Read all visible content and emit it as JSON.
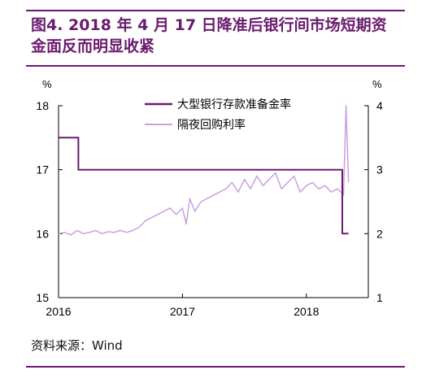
{
  "title": "图4. 2018 年 4 月 17 日降准后银行间市场短期资金面反而明显收紧",
  "source": "资料来源：Wind",
  "colors": {
    "title": "#6a1b6e",
    "series1": "#6a1b6e",
    "series2": "#c9a0e0"
  },
  "chart_data": {
    "type": "line",
    "title": "",
    "left_axis": {
      "unit": "%",
      "ylim": [
        15,
        18
      ],
      "ticks": [
        "15",
        "16",
        "17",
        "18"
      ]
    },
    "right_axis": {
      "unit": "%",
      "ylim": [
        1,
        4
      ],
      "ticks": [
        "1",
        "2",
        "3",
        "4"
      ]
    },
    "x_ticks": [
      "2016",
      "2017",
      "2018"
    ],
    "xlim": [
      2016.0,
      2018.5
    ],
    "legend_position": "top-center",
    "series": [
      {
        "name": "大型银行存款准备金率",
        "axis": "left",
        "x": [
          2016.0,
          2016.16,
          2016.16,
          2018.29,
          2018.29,
          2018.34
        ],
        "y": [
          17.5,
          17.5,
          17.0,
          17.0,
          16.0,
          16.0
        ]
      },
      {
        "name": "隔夜回购利率",
        "axis": "right",
        "x": [
          2016.0,
          2016.05,
          2016.1,
          2016.15,
          2016.2,
          2016.25,
          2016.3,
          2016.35,
          2016.4,
          2016.45,
          2016.5,
          2016.55,
          2016.6,
          2016.65,
          2016.7,
          2016.75,
          2016.8,
          2016.85,
          2016.9,
          2016.95,
          2017.0,
          2017.03,
          2017.06,
          2017.1,
          2017.15,
          2017.2,
          2017.25,
          2017.3,
          2017.35,
          2017.4,
          2017.45,
          2017.5,
          2017.55,
          2017.6,
          2017.65,
          2017.7,
          2017.75,
          2017.8,
          2017.85,
          2017.9,
          2017.95,
          2018.0,
          2018.05,
          2018.1,
          2018.15,
          2018.2,
          2018.25,
          2018.28,
          2018.3,
          2018.32,
          2018.34
        ],
        "y": [
          2.0,
          2.02,
          1.98,
          2.05,
          2.0,
          2.02,
          2.05,
          2.0,
          2.03,
          2.02,
          2.05,
          2.02,
          2.05,
          2.1,
          2.2,
          2.25,
          2.3,
          2.35,
          2.4,
          2.3,
          2.4,
          2.15,
          2.55,
          2.35,
          2.5,
          2.55,
          2.6,
          2.65,
          2.7,
          2.8,
          2.65,
          2.85,
          2.7,
          2.9,
          2.75,
          2.85,
          2.95,
          2.7,
          2.8,
          2.9,
          2.65,
          2.75,
          2.8,
          2.7,
          2.75,
          2.65,
          2.7,
          2.65,
          2.6,
          4.0,
          2.8
        ]
      }
    ]
  }
}
